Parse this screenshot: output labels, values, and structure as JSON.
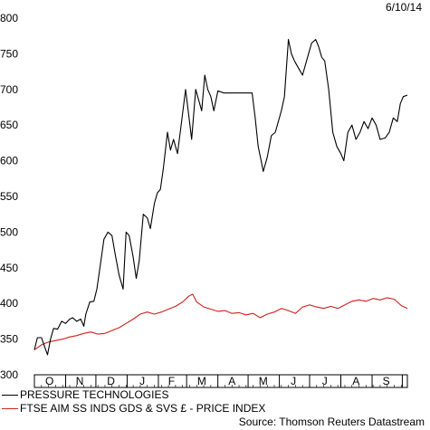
{
  "header": {
    "date": "6/10/14"
  },
  "footer": {
    "source": "Source: Thomson Reuters Datastream"
  },
  "chart_data": {
    "type": "line",
    "title": "",
    "xlabel": "",
    "ylabel": "",
    "ylim": [
      300,
      800
    ],
    "yticks": [
      300,
      350,
      400,
      450,
      500,
      550,
      600,
      650,
      700,
      750,
      800
    ],
    "xlim": [
      "2013-10-01",
      "2014-10-06"
    ],
    "month_labels": [
      {
        "label": "O",
        "date": "2013-10-16"
      },
      {
        "label": "N",
        "date": "2013-11-15"
      },
      {
        "label": "D",
        "date": "2013-12-16"
      },
      {
        "label": "J",
        "date": "2014-01-16"
      },
      {
        "label": "F",
        "date": "2014-02-14"
      },
      {
        "label": "M",
        "date": "2014-03-16"
      },
      {
        "label": "A",
        "date": "2014-04-15"
      },
      {
        "label": "M",
        "date": "2014-05-16"
      },
      {
        "label": "J",
        "date": "2014-06-15"
      },
      {
        "label": "J",
        "date": "2014-07-16"
      },
      {
        "label": "A",
        "date": "2014-08-16"
      },
      {
        "label": "S",
        "date": "2014-09-15"
      }
    ],
    "grid": false,
    "legend": "bottom-left",
    "series": [
      {
        "name": "PRESSURE TECHNOLOGIES",
        "color": "#000000",
        "points": [
          [
            "2013-10-01",
            335
          ],
          [
            "2013-10-04",
            352
          ],
          [
            "2013-10-08",
            352
          ],
          [
            "2013-10-11",
            340
          ],
          [
            "2013-10-14",
            328
          ],
          [
            "2013-10-17",
            350
          ],
          [
            "2013-10-20",
            365
          ],
          [
            "2013-10-24",
            364
          ],
          [
            "2013-10-28",
            375
          ],
          [
            "2013-11-01",
            372
          ],
          [
            "2013-11-05",
            378
          ],
          [
            "2013-11-08",
            380
          ],
          [
            "2013-11-12",
            375
          ],
          [
            "2013-11-16",
            378
          ],
          [
            "2013-11-19",
            368
          ],
          [
            "2013-11-21",
            385
          ],
          [
            "2013-11-25",
            402
          ],
          [
            "2013-11-29",
            403
          ],
          [
            "2013-12-02",
            420
          ],
          [
            "2013-12-05",
            450
          ],
          [
            "2013-12-09",
            490
          ],
          [
            "2013-12-13",
            500
          ],
          [
            "2013-12-17",
            495
          ],
          [
            "2013-12-20",
            470
          ],
          [
            "2013-12-24",
            440
          ],
          [
            "2013-12-28",
            420
          ],
          [
            "2013-12-31",
            500
          ],
          [
            "2014-01-03",
            495
          ],
          [
            "2014-01-07",
            465
          ],
          [
            "2014-01-10",
            435
          ],
          [
            "2014-01-13",
            460
          ],
          [
            "2014-01-17",
            525
          ],
          [
            "2014-01-21",
            520
          ],
          [
            "2014-01-24",
            505
          ],
          [
            "2014-01-28",
            540
          ],
          [
            "2014-01-31",
            555
          ],
          [
            "2014-02-03",
            560
          ],
          [
            "2014-02-06",
            590
          ],
          [
            "2014-02-10",
            640
          ],
          [
            "2014-02-13",
            615
          ],
          [
            "2014-02-16",
            630
          ],
          [
            "2014-02-20",
            610
          ],
          [
            "2014-02-24",
            655
          ],
          [
            "2014-02-28",
            700
          ],
          [
            "2014-03-03",
            665
          ],
          [
            "2014-03-06",
            630
          ],
          [
            "2014-03-10",
            700
          ],
          [
            "2014-03-13",
            685
          ],
          [
            "2014-03-16",
            670
          ],
          [
            "2014-03-19",
            720
          ],
          [
            "2014-03-22",
            700
          ],
          [
            "2014-03-25",
            690
          ],
          [
            "2014-03-28",
            670
          ],
          [
            "2014-04-01",
            698
          ],
          [
            "2014-04-07",
            695
          ],
          [
            "2014-04-14",
            695
          ],
          [
            "2014-04-21",
            695
          ],
          [
            "2014-04-28",
            695
          ],
          [
            "2014-05-05",
            695
          ],
          [
            "2014-05-08",
            660
          ],
          [
            "2014-05-11",
            620
          ],
          [
            "2014-05-14",
            600
          ],
          [
            "2014-05-16",
            585
          ],
          [
            "2014-05-20",
            605
          ],
          [
            "2014-05-24",
            635
          ],
          [
            "2014-05-28",
            640
          ],
          [
            "2014-06-03",
            670
          ],
          [
            "2014-06-06",
            690
          ],
          [
            "2014-06-10",
            770
          ],
          [
            "2014-06-13",
            750
          ],
          [
            "2014-06-16",
            740
          ],
          [
            "2014-06-20",
            730
          ],
          [
            "2014-06-24",
            720
          ],
          [
            "2014-06-28",
            740
          ],
          [
            "2014-07-03",
            765
          ],
          [
            "2014-07-07",
            770
          ],
          [
            "2014-07-10",
            760
          ],
          [
            "2014-07-13",
            745
          ],
          [
            "2014-07-16",
            740
          ],
          [
            "2014-07-20",
            700
          ],
          [
            "2014-07-24",
            640
          ],
          [
            "2014-07-28",
            620
          ],
          [
            "2014-08-01",
            610
          ],
          [
            "2014-08-04",
            600
          ],
          [
            "2014-08-08",
            640
          ],
          [
            "2014-08-12",
            650
          ],
          [
            "2014-08-16",
            630
          ],
          [
            "2014-08-20",
            640
          ],
          [
            "2014-08-24",
            655
          ],
          [
            "2014-08-28",
            645
          ],
          [
            "2014-09-01",
            660
          ],
          [
            "2014-09-05",
            650
          ],
          [
            "2014-09-09",
            630
          ],
          [
            "2014-09-14",
            632
          ],
          [
            "2014-09-18",
            640
          ],
          [
            "2014-09-22",
            660
          ],
          [
            "2014-09-26",
            655
          ],
          [
            "2014-09-29",
            680
          ],
          [
            "2014-10-02",
            690
          ],
          [
            "2014-10-06",
            692
          ]
        ]
      },
      {
        "name": "FTSE AIM SS INDS GDS & SVS £ - PRICE INDEX",
        "color": "#d0211b",
        "points": [
          [
            "2013-10-01",
            335
          ],
          [
            "2013-10-08",
            342
          ],
          [
            "2013-10-15",
            346
          ],
          [
            "2013-10-22",
            348
          ],
          [
            "2013-10-29",
            350
          ],
          [
            "2013-11-05",
            353
          ],
          [
            "2013-11-12",
            355
          ],
          [
            "2013-11-19",
            358
          ],
          [
            "2013-11-26",
            360
          ],
          [
            "2013-12-03",
            357
          ],
          [
            "2013-12-10",
            358
          ],
          [
            "2013-12-17",
            362
          ],
          [
            "2013-12-24",
            366
          ],
          [
            "2013-12-31",
            372
          ],
          [
            "2014-01-07",
            378
          ],
          [
            "2014-01-14",
            385
          ],
          [
            "2014-01-21",
            388
          ],
          [
            "2014-01-28",
            385
          ],
          [
            "2014-02-04",
            388
          ],
          [
            "2014-02-11",
            392
          ],
          [
            "2014-02-18",
            396
          ],
          [
            "2014-02-25",
            402
          ],
          [
            "2014-03-03",
            410
          ],
          [
            "2014-03-07",
            413
          ],
          [
            "2014-03-11",
            402
          ],
          [
            "2014-03-18",
            395
          ],
          [
            "2014-03-25",
            392
          ],
          [
            "2014-04-01",
            389
          ],
          [
            "2014-04-08",
            390
          ],
          [
            "2014-04-15",
            386
          ],
          [
            "2014-04-22",
            387
          ],
          [
            "2014-04-29",
            384
          ],
          [
            "2014-05-06",
            386
          ],
          [
            "2014-05-13",
            380
          ],
          [
            "2014-05-20",
            385
          ],
          [
            "2014-05-27",
            388
          ],
          [
            "2014-06-03",
            393
          ],
          [
            "2014-06-10",
            390
          ],
          [
            "2014-06-17",
            386
          ],
          [
            "2014-06-24",
            395
          ],
          [
            "2014-07-01",
            398
          ],
          [
            "2014-07-08",
            395
          ],
          [
            "2014-07-15",
            393
          ],
          [
            "2014-07-22",
            396
          ],
          [
            "2014-07-29",
            393
          ],
          [
            "2014-08-05",
            398
          ],
          [
            "2014-08-12",
            403
          ],
          [
            "2014-08-19",
            405
          ],
          [
            "2014-08-26",
            403
          ],
          [
            "2014-09-02",
            407
          ],
          [
            "2014-09-09",
            405
          ],
          [
            "2014-09-16",
            408
          ],
          [
            "2014-09-23",
            406
          ],
          [
            "2014-09-30",
            397
          ],
          [
            "2014-10-06",
            393
          ]
        ]
      }
    ]
  }
}
